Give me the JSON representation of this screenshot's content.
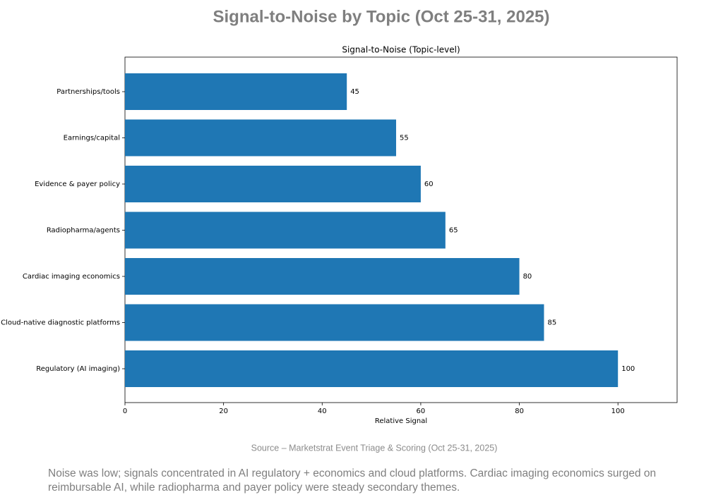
{
  "chart_data": {
    "type": "barh",
    "title": "Signal-to-Noise by Topic (Oct 25-31, 2025)",
    "subtitle": "Signal-to-Noise (Topic-level)",
    "xlabel": "Relative Signal",
    "categories": [
      "Partnerships/tools",
      "Earnings/capital",
      "Evidence & payer policy",
      "Radiopharma/agents",
      "Cardiac imaging economics",
      "Cloud-native diagnostic platforms",
      "Regulatory (AI imaging)"
    ],
    "values": [
      45,
      55,
      60,
      65,
      80,
      85,
      100
    ],
    "color": "#1f77b4",
    "xlim": [
      0,
      112
    ],
    "xticks": [
      0,
      20,
      40,
      60,
      80,
      100
    ],
    "grid": false,
    "source": "Source – Marketstrat Event Triage & Scoring (Oct 25-31, 2025)",
    "caption": "Noise was low; signals concentrated in AI regulatory + economics and cloud platforms. Cardiac imaging economics surged on reimbursable AI, while radiopharma and payer policy were steady secondary themes."
  }
}
